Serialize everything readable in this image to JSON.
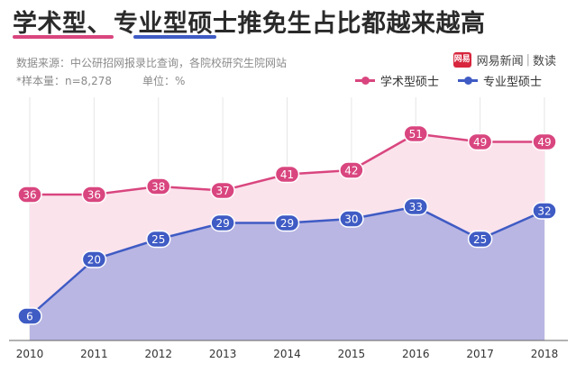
{
  "header": {
    "title_part1": "学术型",
    "title_sep": "、",
    "title_part2": "专业型",
    "title_rest": "硕士推免生占比都越来越高",
    "source": "数据来源：中公研招网报录比查询，各院校研究生院网站",
    "sample": "*样本量：n=8,278",
    "unit": "单位：%"
  },
  "brand": {
    "logo": "网易",
    "name": "网易新闻",
    "section": "数读"
  },
  "colors": {
    "academic": "#d9467f",
    "professional": "#3f5bc4",
    "academic_fill": "#fbe3ec",
    "professional_fill": "#b9b6e3"
  },
  "chart_data": {
    "type": "area",
    "title": "学术型、专业型硕士推免生占比都越来越高",
    "unit": "%",
    "categories": [
      "2010",
      "2011",
      "2012",
      "2013",
      "2014",
      "2015",
      "2016",
      "2017",
      "2018"
    ],
    "series": [
      {
        "name": "学术型硕士",
        "values": [
          36,
          36,
          38,
          37,
          41,
          42,
          51,
          49,
          49
        ]
      },
      {
        "name": "专业型硕士",
        "values": [
          6,
          20,
          25,
          29,
          29,
          30,
          33,
          25,
          32
        ]
      }
    ],
    "ylim": [
      0,
      60
    ],
    "grid": "vertical",
    "legend": "top-right"
  }
}
